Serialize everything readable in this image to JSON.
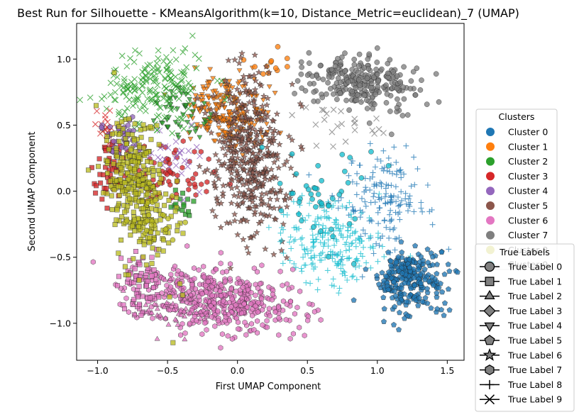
{
  "chart_data": {
    "type": "scatter",
    "title": "Best Run for Silhouette - KMeansAlgorithm(k=10, Distance_Metric=euclidean)_7 (UMAP)",
    "xlabel": "First UMAP Component",
    "ylabel": "Second UMAP Component",
    "xlim": [
      -1.15,
      1.62
    ],
    "ylim": [
      -1.28,
      1.27
    ],
    "x_ticks": [
      -1.0,
      -0.5,
      0.0,
      0.5,
      1.0,
      1.5
    ],
    "y_ticks": [
      -1.0,
      -0.5,
      0.0,
      0.5,
      1.0
    ],
    "x_tick_labels": [
      "−1.0",
      "−0.5",
      "0.0",
      "0.5",
      "1.0",
      "1.5"
    ],
    "y_tick_labels": [
      "−1.0",
      "−0.5",
      "0.0",
      "0.5",
      "1.0"
    ],
    "grid": false,
    "legend_clusters": {
      "title": "Clusters",
      "placement": "outside-right",
      "entries": [
        {
          "label": "Cluster 0",
          "color": "#1f77b4"
        },
        {
          "label": "Cluster 1",
          "color": "#ff7f0e"
        },
        {
          "label": "Cluster 2",
          "color": "#2ca02c"
        },
        {
          "label": "Cluster 3",
          "color": "#d62728"
        },
        {
          "label": "Cluster 4",
          "color": "#9467bd"
        },
        {
          "label": "Cluster 5",
          "color": "#8c564b"
        },
        {
          "label": "Cluster 6",
          "color": "#e377c2"
        },
        {
          "label": "Cluster 7",
          "color": "#7f7f7f"
        },
        {
          "label": "Cluster 8",
          "color": "#bcbd22"
        },
        {
          "label": "Cluster 9",
          "color": "#17becf"
        }
      ]
    },
    "legend_true_labels": {
      "title": "True Labels",
      "placement": "outside-right-lower",
      "entries": [
        {
          "label": "True Label 0",
          "marker": "circle"
        },
        {
          "label": "True Label 1",
          "marker": "square"
        },
        {
          "label": "True Label 2",
          "marker": "triangle-up"
        },
        {
          "label": "True Label 3",
          "marker": "diamond"
        },
        {
          "label": "True Label 4",
          "marker": "triangle-down"
        },
        {
          "label": "True Label 5",
          "marker": "pentagon"
        },
        {
          "label": "True Label 6",
          "marker": "star"
        },
        {
          "label": "True Label 7",
          "marker": "hexagon"
        },
        {
          "label": "True Label 8",
          "marker": "plus"
        },
        {
          "label": "True Label 9",
          "marker": "x"
        }
      ]
    },
    "series": [
      {
        "cluster": 0,
        "color": "#1f77b4",
        "marker": "pentagon",
        "cx": 1.22,
        "cy": -0.68,
        "sx": 0.12,
        "sy": 0.13,
        "angle": -42,
        "n": 260
      },
      {
        "cluster": 0,
        "color": "#1f77b4",
        "marker": "plus",
        "cx": 1.05,
        "cy": -0.05,
        "sx": 0.16,
        "sy": 0.2,
        "angle": 0,
        "n": 160
      },
      {
        "cluster": 1,
        "color": "#ff7f0e",
        "marker": "triangle-down",
        "cx": -0.08,
        "cy": 0.6,
        "sx": 0.14,
        "sy": 0.13,
        "angle": 0,
        "n": 230
      },
      {
        "cluster": 1,
        "color": "#ff7f0e",
        "marker": "circle",
        "cx": 0.2,
        "cy": 0.95,
        "sx": 0.1,
        "sy": 0.06,
        "angle": 0,
        "n": 12
      },
      {
        "cluster": 2,
        "color": "#2ca02c",
        "marker": "x",
        "cx": -0.6,
        "cy": 0.78,
        "sx": 0.18,
        "sy": 0.14,
        "angle": 20,
        "n": 200
      },
      {
        "cluster": 2,
        "color": "#2ca02c",
        "marker": "triangle-down",
        "cx": -0.4,
        "cy": 0.55,
        "sx": 0.12,
        "sy": 0.1,
        "angle": 0,
        "n": 45
      },
      {
        "cluster": 2,
        "color": "#2ca02c",
        "marker": "square",
        "cx": -0.4,
        "cy": -0.1,
        "sx": 0.06,
        "sy": 0.06,
        "angle": 0,
        "n": 15
      },
      {
        "cluster": 3,
        "color": "#d62728",
        "marker": "square",
        "cx": -0.9,
        "cy": 0.2,
        "sx": 0.06,
        "sy": 0.14,
        "angle": 0,
        "n": 55
      },
      {
        "cluster": 3,
        "color": "#d62728",
        "marker": "hexagon",
        "cx": -0.45,
        "cy": 0.12,
        "sx": 0.14,
        "sy": 0.12,
        "angle": 0,
        "n": 60
      },
      {
        "cluster": 3,
        "color": "#d62728",
        "marker": "x",
        "cx": -0.95,
        "cy": 0.5,
        "sx": 0.05,
        "sy": 0.06,
        "angle": 0,
        "n": 20
      },
      {
        "cluster": 4,
        "color": "#9467bd",
        "marker": "hexagon",
        "cx": -0.82,
        "cy": 0.38,
        "sx": 0.07,
        "sy": 0.08,
        "angle": 0,
        "n": 45
      },
      {
        "cluster": 4,
        "color": "#9467bd",
        "marker": "x",
        "cx": -0.45,
        "cy": 0.25,
        "sx": 0.1,
        "sy": 0.1,
        "angle": 0,
        "n": 30
      },
      {
        "cluster": 5,
        "color": "#8c564b",
        "marker": "star",
        "cx": 0.08,
        "cy": 0.28,
        "sx": 0.14,
        "sy": 0.3,
        "angle": 5,
        "n": 420
      },
      {
        "cluster": 6,
        "color": "#e377c2",
        "marker": "hexagon",
        "cx": -0.1,
        "cy": -0.82,
        "sx": 0.3,
        "sy": 0.12,
        "angle": -8,
        "n": 430
      },
      {
        "cluster": 6,
        "color": "#e377c2",
        "marker": "square",
        "cx": -0.7,
        "cy": -0.72,
        "sx": 0.08,
        "sy": 0.14,
        "angle": 0,
        "n": 70
      },
      {
        "cluster": 6,
        "color": "#e377c2",
        "marker": "triangle-up",
        "cx": -0.45,
        "cy": -0.88,
        "sx": 0.15,
        "sy": 0.08,
        "angle": 0,
        "n": 60
      },
      {
        "cluster": 7,
        "color": "#7f7f7f",
        "marker": "circle",
        "cx": 0.9,
        "cy": 0.82,
        "sx": 0.22,
        "sy": 0.1,
        "angle": -10,
        "n": 260
      },
      {
        "cluster": 7,
        "color": "#7f7f7f",
        "marker": "x",
        "cx": 0.75,
        "cy": 0.5,
        "sx": 0.15,
        "sy": 0.1,
        "angle": 0,
        "n": 25
      },
      {
        "cluster": 8,
        "color": "#bcbd22",
        "marker": "square",
        "cx": -0.72,
        "cy": 0.03,
        "sx": 0.1,
        "sy": 0.28,
        "angle": 12,
        "n": 330
      },
      {
        "cluster": 8,
        "color": "#bcbd22",
        "marker": "circle",
        "cx": -0.6,
        "cy": -0.2,
        "sx": 0.08,
        "sy": 0.12,
        "angle": 0,
        "n": 20
      },
      {
        "cluster": 9,
        "color": "#17becf",
        "marker": "plus",
        "cx": 0.65,
        "cy": -0.38,
        "sx": 0.18,
        "sy": 0.15,
        "angle": 0,
        "n": 220
      },
      {
        "cluster": 9,
        "color": "#17becf",
        "marker": "circle",
        "cx": 0.62,
        "cy": 0.0,
        "sx": 0.18,
        "sy": 0.2,
        "angle": 0,
        "n": 45
      }
    ]
  }
}
